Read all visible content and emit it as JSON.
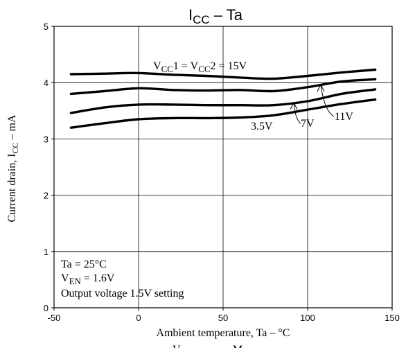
{
  "chart_data": {
    "type": "line",
    "title": {
      "main": "I",
      "sub": "CC",
      "rest": " – Ta"
    },
    "xlabel": "Ambient temperature, Ta – °C",
    "ylabel": {
      "main": "Current drain, I",
      "sub": "CC",
      "rest": " – mA"
    },
    "xlim": [
      -50,
      150
    ],
    "ylim": [
      0,
      5
    ],
    "xticks": [
      -50,
      0,
      50,
      100,
      150
    ],
    "yticks": [
      0,
      1,
      2,
      3,
      4,
      5
    ],
    "grid": true,
    "series": [
      {
        "name": "15V",
        "x": [
          -40,
          -20,
          0,
          20,
          40,
          60,
          80,
          100,
          120,
          140
        ],
        "values": [
          4.15,
          4.16,
          4.17,
          4.14,
          4.12,
          4.09,
          4.07,
          4.12,
          4.18,
          4.23
        ]
      },
      {
        "name": "11V",
        "x": [
          -40,
          -20,
          0,
          20,
          40,
          60,
          80,
          100,
          120,
          140
        ],
        "values": [
          3.8,
          3.85,
          3.9,
          3.87,
          3.86,
          3.87,
          3.85,
          3.92,
          4.02,
          4.06
        ]
      },
      {
        "name": "7V",
        "x": [
          -40,
          -20,
          0,
          20,
          40,
          60,
          80,
          100,
          120,
          140
        ],
        "values": [
          3.46,
          3.56,
          3.61,
          3.61,
          3.6,
          3.6,
          3.6,
          3.67,
          3.8,
          3.88
        ]
      },
      {
        "name": "3.5V",
        "x": [
          -40,
          -20,
          0,
          20,
          40,
          60,
          80,
          100,
          120,
          140
        ],
        "values": [
          3.2,
          3.28,
          3.35,
          3.37,
          3.37,
          3.38,
          3.42,
          3.52,
          3.62,
          3.7
        ]
      }
    ],
    "annotations": {
      "top_label": [
        {
          "t": "V",
          "sub": false
        },
        {
          "t": "CC",
          "sub": true
        },
        {
          "t": "1 = V",
          "sub": false
        },
        {
          "t": "CC",
          "sub": true
        },
        {
          "t": "2 = 15V",
          "sub": false
        }
      ],
      "label_11v": "11V",
      "label_7v": "7V",
      "label_3_5v": "3.5V",
      "conditions": {
        "line1": "Ta = 25°C",
        "line2": {
          "main": "V",
          "sub": "EN",
          "rest": " = 1.6V"
        },
        "line3": "Output voltage 1.5V setting"
      },
      "bottom_partial": {
        "a": "V",
        "b": "M"
      }
    },
    "colors": {
      "line": "#000000",
      "grid": "#000000",
      "background": "#ffffff"
    }
  }
}
